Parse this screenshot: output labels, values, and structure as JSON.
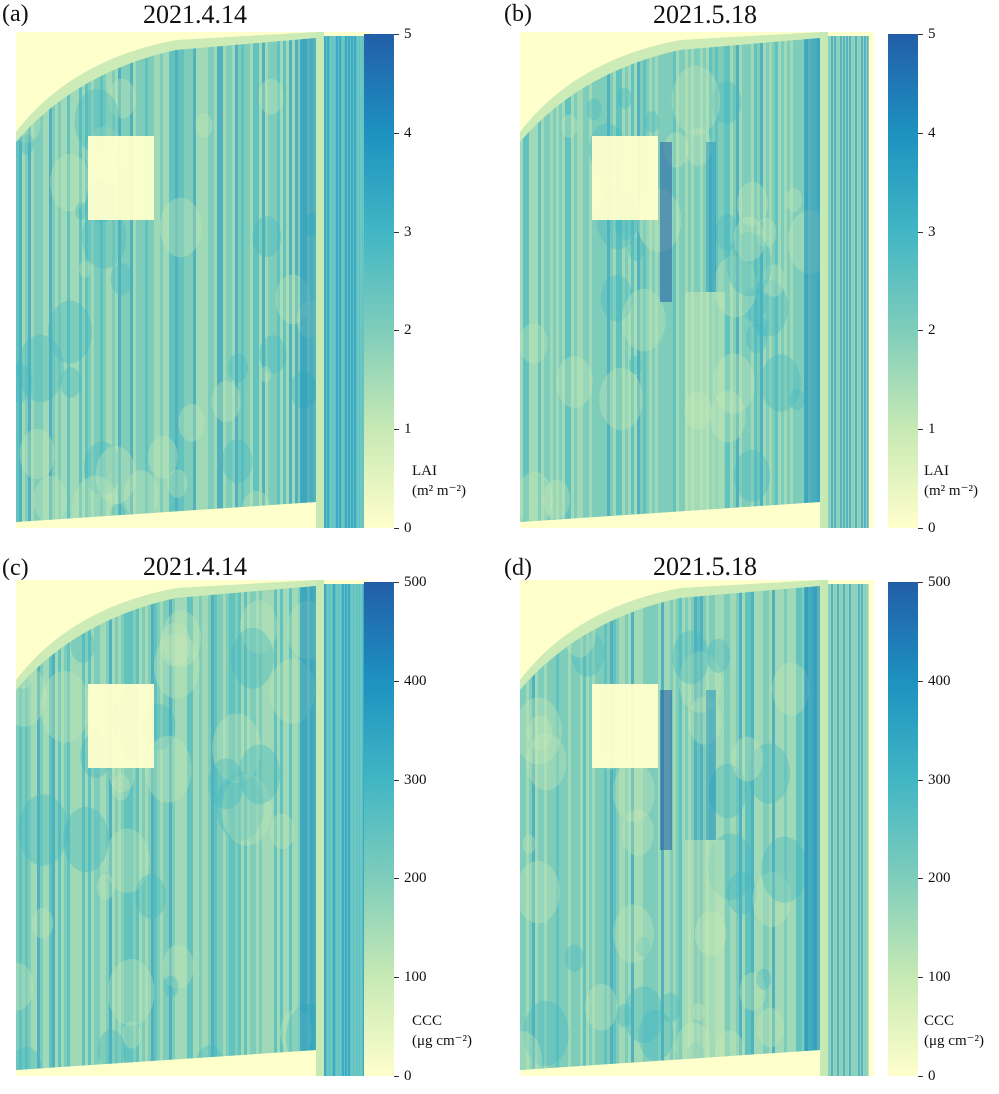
{
  "panels": [
    {
      "label": "(a)",
      "date": "2021.4.14",
      "ticks": [
        "0",
        "1",
        "2",
        "3",
        "4",
        "5"
      ],
      "cb_title": "LAI",
      "cb_unit": "(m² m⁻²)",
      "variable": "LAI",
      "scale_max": 5
    },
    {
      "label": "(b)",
      "date": "2021.5.18",
      "ticks": [
        "0",
        "1",
        "2",
        "3",
        "4",
        "5"
      ],
      "cb_title": "LAI",
      "cb_unit": "(m² m⁻²)",
      "variable": "LAI",
      "scale_max": 5
    },
    {
      "label": "(c)",
      "date": "2021.4.14",
      "ticks": [
        "0",
        "100",
        "200",
        "300",
        "400",
        "500"
      ],
      "cb_title": "CCC",
      "cb_unit": "(μg cm⁻²)",
      "variable": "CCC",
      "scale_max": 500
    },
    {
      "label": "(d)",
      "date": "2021.5.18",
      "ticks": [
        "0",
        "100",
        "200",
        "300",
        "400",
        "500"
      ],
      "cb_title": "CCC",
      "cb_unit": "(μg cm⁻²)",
      "variable": "CCC",
      "scale_max": 500
    }
  ],
  "colors": {
    "low": "#ffffcc",
    "mid_low": "#c7e9b4",
    "mid": "#7fcdbb",
    "mid_high": "#41b6c4",
    "high": "#1d91c0",
    "max": "#225ea8"
  }
}
